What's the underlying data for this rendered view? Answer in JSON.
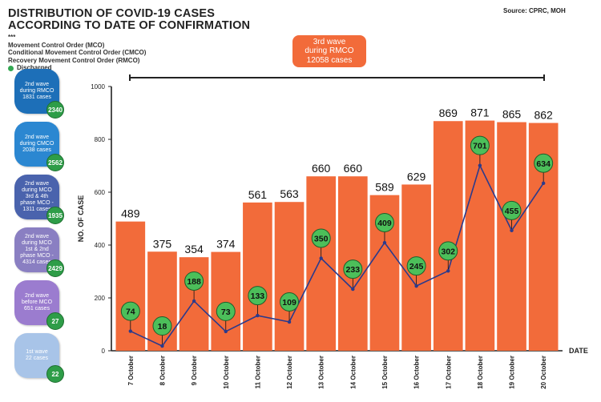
{
  "header": {
    "title_line1": "DISTRIBUTION OF COVID-19 CASES",
    "title_line2": "ACCORDING TO DATE OF CONFIRMATION",
    "source": "Source: CPRC, MOH"
  },
  "legend": {
    "marker": "***",
    "mco": "Movement Control Order (MCO)",
    "cmco": "Conditional Movement Control Order (CMCO)",
    "rmco": "Recovery Movement Control Order (RMCO)",
    "discharged": "Discharged",
    "discharged_color": "#33a852"
  },
  "callout": {
    "line1": "3rd wave",
    "line2": "during RMCO",
    "line3": "12058 cases"
  },
  "waves": [
    {
      "line1": "2nd wave",
      "line2": "during RMCO",
      "line3": "1831 cases",
      "line4": "",
      "discharged": "2340",
      "color": "#1d6fb8"
    },
    {
      "line1": "2nd wave",
      "line2": "during CMCO",
      "line3": "2038 cases",
      "line4": "",
      "discharged": "2562",
      "color": "#2b87d1"
    },
    {
      "line1": "2nd wave",
      "line2": "during MCO",
      "line3": "3rd & 4th",
      "line4": "phase MCO - 1311 cases",
      "discharged": "1935",
      "color": "#4a63ad"
    },
    {
      "line1": "2nd wave",
      "line2": "during MCO",
      "line3": "1st & 2nd",
      "line4": "phase MCO - 4314 cases",
      "discharged": "2429",
      "color": "#8a7fc2"
    },
    {
      "line1": "2nd wave",
      "line2": "before MCO",
      "line3": "651 cases",
      "line4": "",
      "discharged": "27",
      "color": "#9b7ccf"
    },
    {
      "line1": "1st wave",
      "line2": "22 cases",
      "line3": "",
      "line4": "",
      "discharged": "22",
      "color": "#a8c4e8"
    }
  ],
  "colors": {
    "bar": "#f26b3a",
    "line": "#2b3a8c",
    "bubble": "#4cbf5a"
  },
  "chart_data": {
    "type": "bar",
    "categories": [
      "7 October",
      "8 October",
      "9 October",
      "10 October",
      "11 October",
      "12 October",
      "13 October",
      "14 October",
      "15 October",
      "16 October",
      "17 October",
      "18 October",
      "19 October",
      "20 October"
    ],
    "series": [
      {
        "values": [
          489,
          375,
          354,
          374,
          561,
          563,
          660,
          660,
          589,
          629,
          869,
          871,
          865,
          862
        ]
      },
      {
        "name": "Discharged",
        "type": "line",
        "values": [
          74,
          18,
          188,
          73,
          133,
          109,
          350,
          233,
          409,
          245,
          302,
          701,
          455,
          634
        ]
      }
    ],
    "xlabel": "DATE",
    "ylabel": "NO. OF CASE",
    "ylim": [
      0,
      1000
    ],
    "yticks": [
      0,
      200,
      400,
      600,
      800,
      1000
    ]
  }
}
